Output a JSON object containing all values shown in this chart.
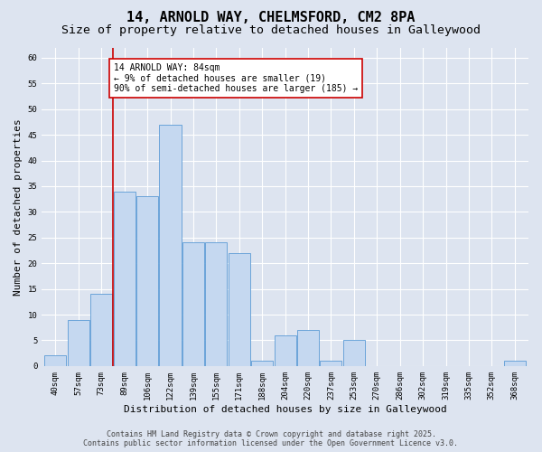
{
  "title_line1": "14, ARNOLD WAY, CHELMSFORD, CM2 8PA",
  "title_line2": "Size of property relative to detached houses in Galleywood",
  "xlabel": "Distribution of detached houses by size in Galleywood",
  "ylabel": "Number of detached properties",
  "categories": [
    "40sqm",
    "57sqm",
    "73sqm",
    "89sqm",
    "106sqm",
    "122sqm",
    "139sqm",
    "155sqm",
    "171sqm",
    "188sqm",
    "204sqm",
    "220sqm",
    "237sqm",
    "253sqm",
    "270sqm",
    "286sqm",
    "302sqm",
    "319sqm",
    "335sqm",
    "352sqm",
    "368sqm"
  ],
  "values": [
    2,
    9,
    14,
    34,
    33,
    47,
    24,
    24,
    22,
    1,
    6,
    7,
    1,
    5,
    0,
    0,
    0,
    0,
    0,
    0,
    1
  ],
  "bar_color": "#c5d8f0",
  "bar_edge_color": "#5b9bd5",
  "background_color": "#dde4f0",
  "grid_color": "#ffffff",
  "vline_color": "#cc0000",
  "annotation_text": "14 ARNOLD WAY: 84sqm\n← 9% of detached houses are smaller (19)\n90% of semi-detached houses are larger (185) →",
  "annotation_box_color": "#ffffff",
  "annotation_box_edge": "#cc0000",
  "ylim": [
    0,
    62
  ],
  "yticks": [
    0,
    5,
    10,
    15,
    20,
    25,
    30,
    35,
    40,
    45,
    50,
    55,
    60
  ],
  "footer_line1": "Contains HM Land Registry data © Crown copyright and database right 2025.",
  "footer_line2": "Contains public sector information licensed under the Open Government Licence v3.0.",
  "title_fontsize": 11,
  "subtitle_fontsize": 9.5,
  "axis_label_fontsize": 8,
  "tick_fontsize": 6.5,
  "annotation_fontsize": 7,
  "footer_fontsize": 6
}
